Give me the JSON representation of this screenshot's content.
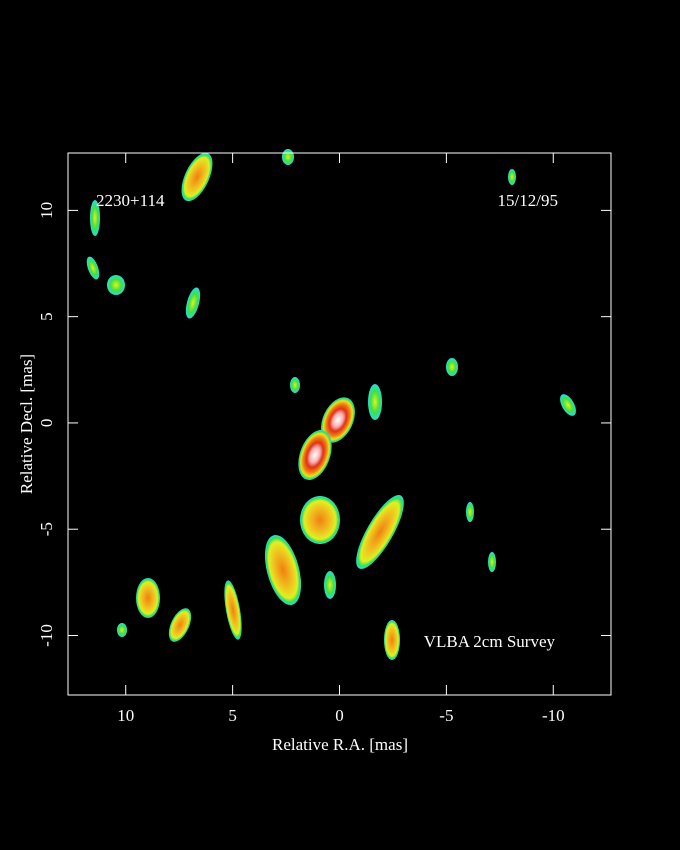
{
  "chart_data": {
    "type": "image",
    "annotations": [
      "2230+114",
      "15/12/95",
      "VLBA 2cm Survey"
    ],
    "x_label": "Relative R.A. [mas]",
    "y_label": "Relative Decl. [mas]",
    "xlim": [
      12.7,
      -12.7
    ],
    "xticks": [
      10,
      5,
      0,
      -5,
      -10
    ],
    "ylim": [
      -12.8,
      12.7
    ],
    "yticks": [
      -10,
      -5,
      0,
      5,
      10
    ]
  }
}
